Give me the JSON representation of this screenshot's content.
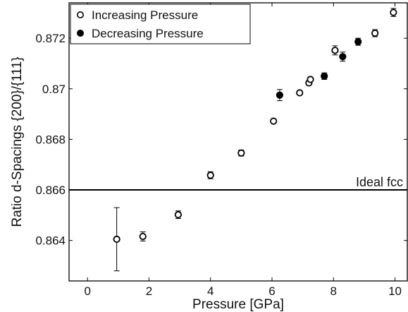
{
  "chart_data": {
    "type": "scatter",
    "title": "",
    "xlabel": "Pressure [GPa]",
    "ylabel": "Ratio d-Spacings {200}/{111}",
    "xlim": [
      -0.6,
      10.4
    ],
    "ylim": [
      0.8624,
      0.8734
    ],
    "xticks": [
      0,
      2,
      4,
      6,
      8,
      10
    ],
    "xtick_labels": [
      "0",
      "2",
      "4",
      "6",
      "8",
      "10"
    ],
    "yticks": [
      0.864,
      0.866,
      0.868,
      0.87,
      0.872
    ],
    "ytick_labels": [
      "0.864",
      "0.866",
      "0.868",
      "0.87",
      "0.872"
    ],
    "grid": false,
    "legend_position": "top-left",
    "series": [
      {
        "name": "Increasing Pressure",
        "marker": "open-circle",
        "color": "#000000",
        "points": [
          {
            "x": 0.95,
            "y": 0.86405,
            "err": 0.00125
          },
          {
            "x": 1.8,
            "y": 0.86416,
            "err": 0.00018
          },
          {
            "x": 2.95,
            "y": 0.86502,
            "err": 0.00015
          },
          {
            "x": 4.0,
            "y": 0.86658,
            "err": 0.00014
          },
          {
            "x": 5.0,
            "y": 0.86746,
            "err": 0.00012
          },
          {
            "x": 6.05,
            "y": 0.86872,
            "err": 4e-05
          },
          {
            "x": 6.9,
            "y": 0.86984,
            "err": 5e-05
          },
          {
            "x": 7.2,
            "y": 0.87023,
            "err": 7e-05
          },
          {
            "x": 7.25,
            "y": 0.87037,
            "err": 6e-05
          },
          {
            "x": 8.05,
            "y": 0.87152,
            "err": 0.00018
          },
          {
            "x": 9.35,
            "y": 0.8722,
            "err": 0.00014
          },
          {
            "x": 9.95,
            "y": 0.87302,
            "err": 0.00016
          }
        ]
      },
      {
        "name": "Decreasing Pressure",
        "marker": "filled-circle",
        "color": "#000000",
        "points": [
          {
            "x": 6.25,
            "y": 0.86975,
            "err": 0.00022
          },
          {
            "x": 7.7,
            "y": 0.8705,
            "err": 0.00013
          },
          {
            "x": 8.3,
            "y": 0.87127,
            "err": 0.00018
          },
          {
            "x": 8.8,
            "y": 0.87186,
            "err": 0.00014
          }
        ]
      }
    ],
    "hlines": [
      {
        "y": 0.866,
        "label": "Ideal fcc"
      }
    ]
  }
}
